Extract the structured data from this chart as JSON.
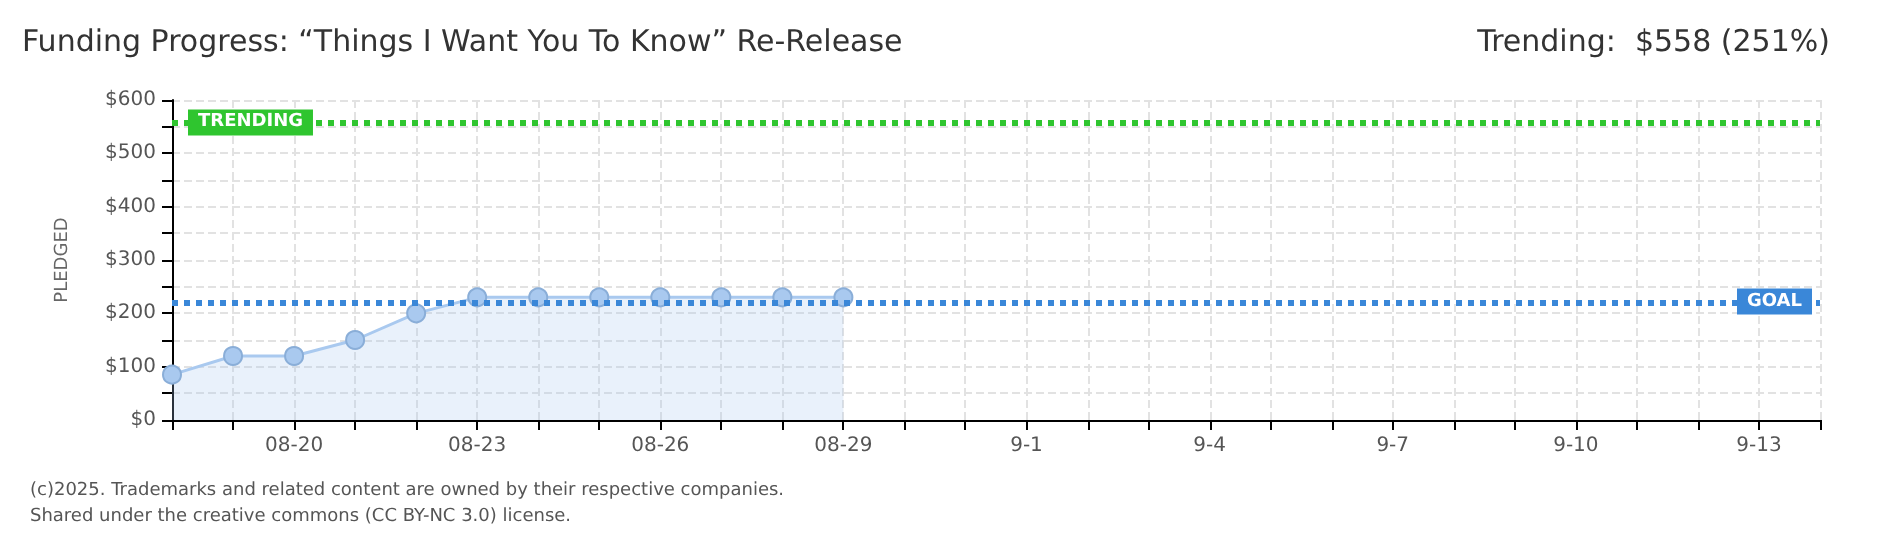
{
  "chart_data": {
    "type": "area",
    "title": "Funding Progress: “Things I Want You To Know” Re-Release",
    "subtitle": "Trending:  $558 (251%)",
    "ylabel": "PLEDGED",
    "categories": [
      null,
      null,
      "08-20",
      null,
      null,
      "08-23",
      null,
      null,
      "08-26",
      null,
      null,
      "08-29",
      null,
      null,
      "9-1",
      null,
      null,
      "9-4",
      null,
      null,
      "9-7",
      null,
      null,
      "9-10",
      null,
      null,
      "9-13",
      null
    ],
    "series": [
      {
        "color": "#a9c9ef",
        "values": [
          85,
          120,
          120,
          150,
          200,
          230,
          230,
          230,
          230,
          230,
          230,
          230,
          null,
          null,
          null,
          null,
          null,
          null,
          null,
          null,
          null,
          null,
          null,
          null,
          null,
          null,
          null,
          null
        ]
      }
    ],
    "ylim": [
      0,
      600
    ],
    "yticks": [
      {
        "value": 0,
        "label": "$0"
      },
      {
        "value": 50,
        "label": null
      },
      {
        "value": 100,
        "label": "$100"
      },
      {
        "value": 150,
        "label": null
      },
      {
        "value": 200,
        "label": "$200"
      },
      {
        "value": 250,
        "label": null
      },
      {
        "value": 300,
        "label": "$300"
      },
      {
        "value": 350,
        "label": null
      },
      {
        "value": 400,
        "label": "$400"
      },
      {
        "value": 450,
        "label": null
      },
      {
        "value": 500,
        "label": "$500"
      },
      {
        "value": 550,
        "label": null
      },
      {
        "value": 600,
        "label": "$600"
      }
    ],
    "ref_lines": [
      {
        "axis": "y",
        "value": 558,
        "label": "TRENDING",
        "color": "#2fc52f",
        "line_style": "dotted"
      },
      {
        "axis": "y",
        "value": 222,
        "label": "GOAL",
        "color": "#3a87d8",
        "line_style": "dotted"
      }
    ],
    "annotations": [
      "(c)2025. Trademarks and related content are owned by their respective companies.",
      "Shared under the creative commons (CC BY-NC 3.0) license."
    ],
    "grid": true,
    "marker": "circle",
    "line_style": "solid"
  }
}
